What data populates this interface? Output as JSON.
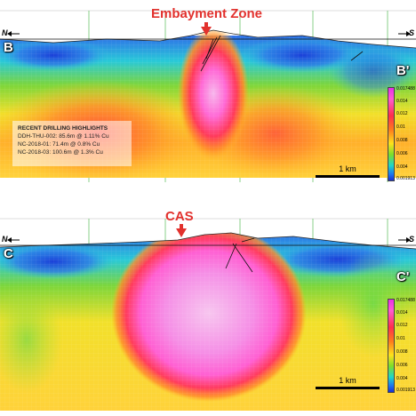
{
  "top": {
    "title": "Embayment Zone",
    "dir_left": "N",
    "dir_right": "S",
    "section_left": "B",
    "section_right": "B'",
    "scale_label": "1 km",
    "legend_labels": [
      "0.017488",
      "0.014",
      "0.012",
      "0.01",
      "0.008",
      "0.006",
      "0.004",
      "0.001913"
    ],
    "drilling": {
      "heading": "RECENT DRILLING HIGHLIGHTS",
      "rows": [
        "DDH-THU-002: 85.6m @ 1.11% Cu",
        "NC-2018-01: 71.4m @ 0.8% Cu",
        "NC-2018-03: 100.6m @ 1.3% Cu"
      ]
    }
  },
  "bottom": {
    "title": "CAS",
    "dir_left": "N",
    "dir_right": "S",
    "section_left": "C",
    "section_right": "C'",
    "scale_label": "1 km",
    "legend_labels": [
      "0.017488",
      "0.014",
      "0.012",
      "0.01",
      "0.008",
      "0.006",
      "0.004",
      "0.001913"
    ]
  },
  "colors": {
    "title_red": "#e2312d",
    "grid_green": "#2b9a2b"
  }
}
